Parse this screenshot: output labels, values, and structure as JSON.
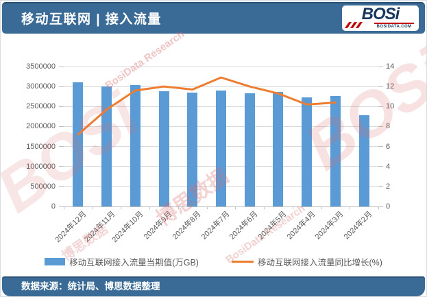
{
  "header": {
    "title": "移动互联网 | 接入流量"
  },
  "logo": {
    "brand": "BOSi",
    "site": "BOSIDATA.COM"
  },
  "footer": {
    "source": "数据来源：统计局、博思数据整理"
  },
  "watermark": {
    "brand": "BOSi",
    "cn": "博思数据",
    "en": "BosiData Research"
  },
  "colors": {
    "header_bar": "#3A6B96",
    "bar": "#5B9BD5",
    "line": "#ED7D31",
    "axis_text": "#595959",
    "gridline": "#D9D9D9",
    "axis_line": "#BFBFBF",
    "logo_navy": "#17375E",
    "logo_red": "#C00000",
    "watermark": "#D96C6C"
  },
  "chart_data": {
    "type": "bar",
    "title": "移动互联网 | 接入流量",
    "categories": [
      "2024年12月",
      "2024年11月",
      "2024年10月",
      "2024年9月",
      "2024年8月",
      "2024年7月",
      "2024年6月",
      "2024年5月",
      "2024年4月",
      "2024年3月",
      "2024年2月"
    ],
    "series": [
      {
        "name": "移动互联网接入流量当期值(万GB)",
        "type": "bar",
        "y_axis": "left",
        "values": [
          3100000,
          3000000,
          3040000,
          2880000,
          2845000,
          2900000,
          2830000,
          2870000,
          2720000,
          2765000,
          2290000
        ]
      },
      {
        "name": "移动互联网接入流量同比增长(%)",
        "type": "line",
        "y_axis": "right",
        "values": [
          7.2,
          9.7,
          11.6,
          12.0,
          11.7,
          12.9,
          12.0,
          11.3,
          10.2,
          10.4,
          null
        ]
      }
    ],
    "y_left": {
      "label": "",
      "lim": [
        0,
        3500000
      ],
      "ticks": [
        0,
        500000,
        1000000,
        1500000,
        2000000,
        2500000,
        3000000,
        3500000
      ]
    },
    "y_right": {
      "label": "",
      "lim": [
        0,
        14
      ],
      "ticks": [
        0,
        2,
        4,
        6,
        8,
        10,
        12,
        14
      ]
    },
    "grid": true,
    "legend_position": "bottom"
  }
}
